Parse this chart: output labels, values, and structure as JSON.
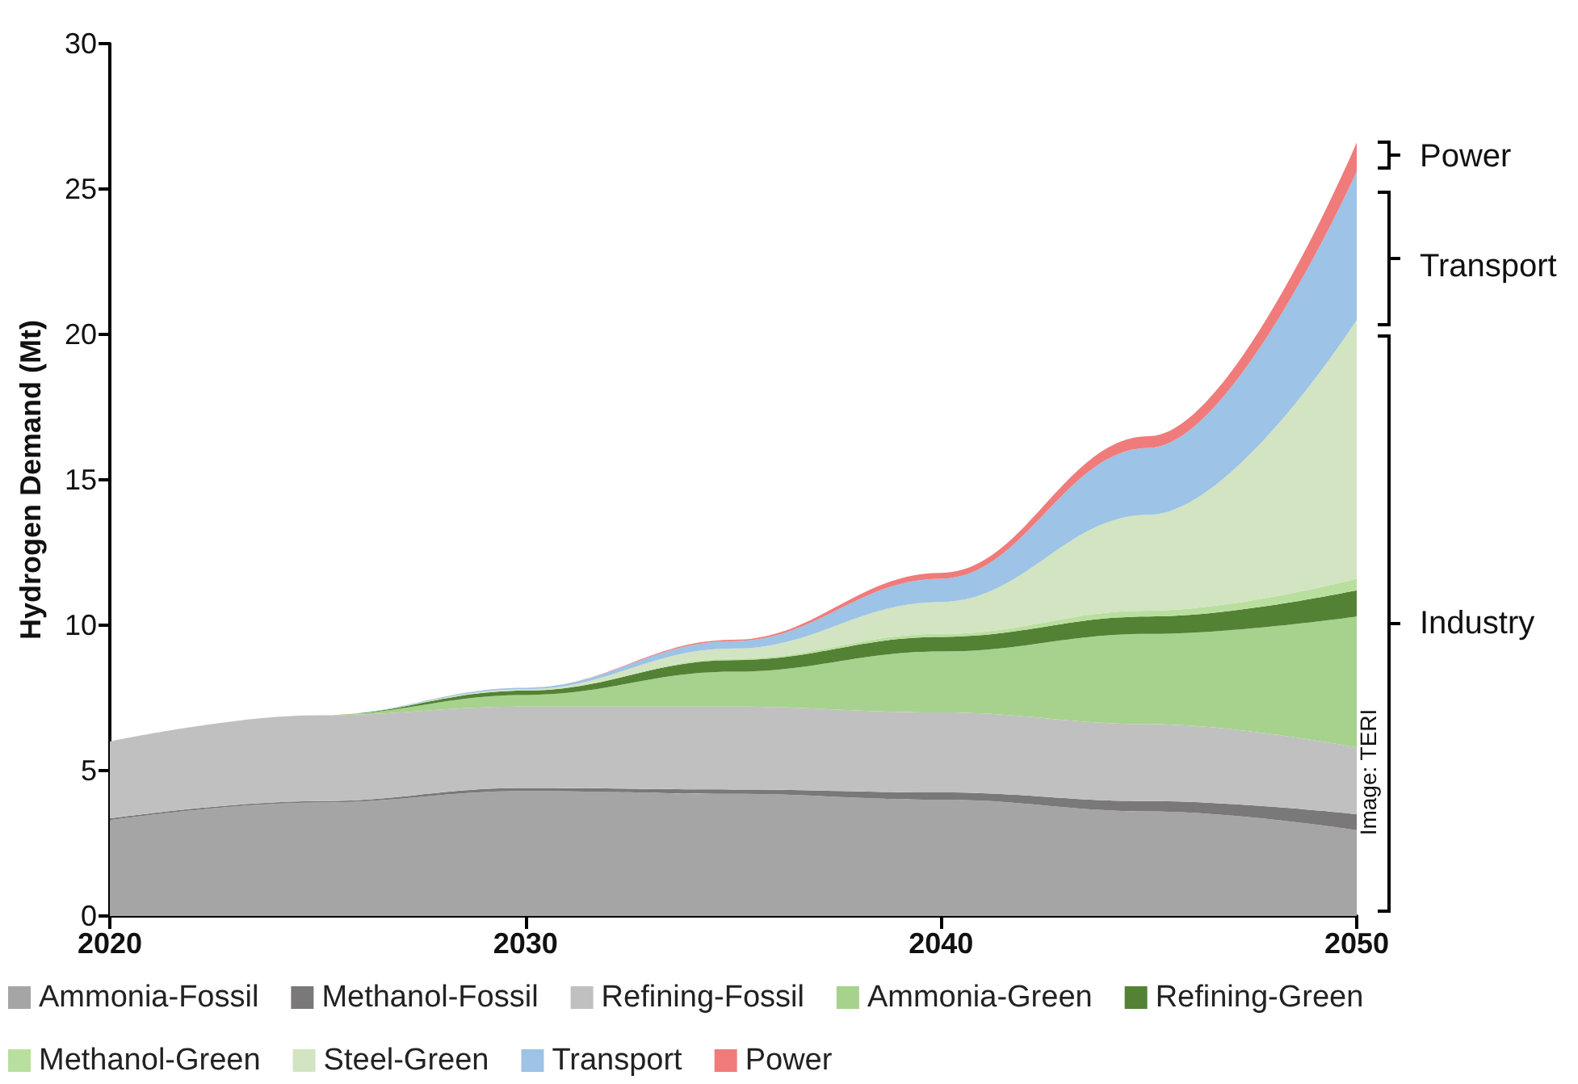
{
  "chart_data": {
    "type": "area",
    "stacked": true,
    "ylabel": "Hydrogen Demand (Mt)",
    "x": [
      2020,
      2025,
      2030,
      2035,
      2040,
      2045,
      2050
    ],
    "xlim": [
      2020,
      2050
    ],
    "xticks": [
      2020,
      2030,
      2040,
      2050
    ],
    "ylim": [
      0,
      30
    ],
    "yticks": [
      0,
      5,
      10,
      15,
      20,
      25,
      30
    ],
    "grid": false,
    "legend": "bottom",
    "series": [
      {
        "name": "Ammonia-Fossil",
        "color": "#a6a5a5",
        "values": [
          3.3,
          3.9,
          4.3,
          4.2,
          4.0,
          3.6,
          2.95
        ]
      },
      {
        "name": "Methanol-Fossil",
        "color": "#7a7879",
        "values": [
          0.05,
          0.05,
          0.1,
          0.15,
          0.25,
          0.35,
          0.55
        ]
      },
      {
        "name": "Refining-Fossil",
        "color": "#c1c0c1",
        "values": [
          2.65,
          2.95,
          2.8,
          2.85,
          2.75,
          2.65,
          2.3
        ]
      },
      {
        "name": "Ammonia-Green",
        "color": "#a6d28d",
        "values": [
          0,
          0,
          0.4,
          1.2,
          2.1,
          3.1,
          4.5
        ]
      },
      {
        "name": "Refining-Green",
        "color": "#548235",
        "values": [
          0,
          0,
          0.15,
          0.4,
          0.5,
          0.6,
          0.9
        ]
      },
      {
        "name": "Methanol-Green",
        "color": "#b9df9f",
        "values": [
          0,
          0,
          0,
          0.05,
          0.1,
          0.2,
          0.4
        ]
      },
      {
        "name": "Steel-Green",
        "color": "#d2e4c1",
        "values": [
          0,
          0,
          0.05,
          0.35,
          1.1,
          3.3,
          8.9
        ]
      },
      {
        "name": "Transport",
        "color": "#9dc3e6",
        "values": [
          0,
          0,
          0.05,
          0.25,
          0.8,
          2.3,
          5.1
        ]
      },
      {
        "name": "Power",
        "color": "#f07b7b",
        "values": [
          0,
          0,
          0,
          0.05,
          0.2,
          0.4,
          1.0
        ]
      }
    ],
    "annotations": [
      "Power",
      "Transport",
      "Industry",
      "Image: TERI"
    ]
  }
}
